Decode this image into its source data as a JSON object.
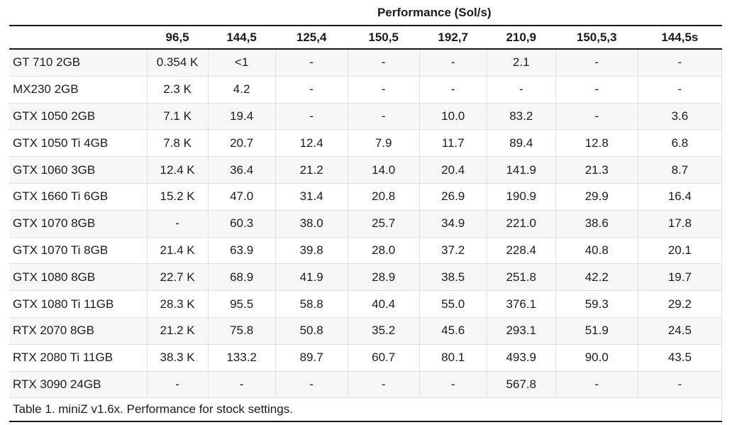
{
  "chart_data": {
    "type": "table",
    "title": "Performance (Sol/s)",
    "caption": "Table 1. miniZ v1.6x. Performance for stock settings.",
    "columns": [
      "96,5",
      "144,5",
      "125,4",
      "150,5",
      "192,7",
      "210,9",
      "150,5,3",
      "144,5s"
    ],
    "rows": [
      {
        "gpu": "GT 710 2GB",
        "values": [
          "0.354 K",
          "<1",
          "-",
          "-",
          "-",
          "2.1",
          "-",
          "-"
        ]
      },
      {
        "gpu": "MX230 2GB",
        "values": [
          "2.3 K",
          "4.2",
          "-",
          "-",
          "-",
          "-",
          "-",
          "-"
        ]
      },
      {
        "gpu": "GTX 1050 2GB",
        "values": [
          "7.1 K",
          "19.4",
          "-",
          "-",
          "10.0",
          "83.2",
          "-",
          "3.6"
        ]
      },
      {
        "gpu": "GTX 1050 Ti 4GB",
        "values": [
          "7.8 K",
          "20.7",
          "12.4",
          "7.9",
          "11.7",
          "89.4",
          "12.8",
          "6.8"
        ]
      },
      {
        "gpu": "GTX 1060 3GB",
        "values": [
          "12.4 K",
          "36.4",
          "21.2",
          "14.0",
          "20.4",
          "141.9",
          "21.3",
          "8.7"
        ]
      },
      {
        "gpu": "GTX 1660 Ti 6GB",
        "values": [
          "15.2 K",
          "47.0",
          "31.4",
          "20.8",
          "26.9",
          "190.9",
          "29.9",
          "16.4"
        ]
      },
      {
        "gpu": "GTX 1070 8GB",
        "values": [
          "-",
          "60.3",
          "38.0",
          "25.7",
          "34.9",
          "221.0",
          "38.6",
          "17.8"
        ]
      },
      {
        "gpu": "GTX 1070 Ti 8GB",
        "values": [
          "21.4 K",
          "63.9",
          "39.8",
          "28.0",
          "37.2",
          "228.4",
          "40.8",
          "20.1"
        ]
      },
      {
        "gpu": "GTX 1080 8GB",
        "values": [
          "22.7 K",
          "68.9",
          "41.9",
          "28.9",
          "38.5",
          "251.8",
          "42.2",
          "19.7"
        ]
      },
      {
        "gpu": "GTX 1080 Ti 11GB",
        "values": [
          "28.3 K",
          "95.5",
          "58.8",
          "40.4",
          "55.0",
          "376.1",
          "59.3",
          "29.2"
        ]
      },
      {
        "gpu": "RTX 2070 8GB",
        "values": [
          "21.2 K",
          "75.8",
          "50.8",
          "35.2",
          "45.6",
          "293.1",
          "51.9",
          "24.5"
        ]
      },
      {
        "gpu": "RTX 2080 Ti 11GB",
        "values": [
          "38.3 K",
          "133.2",
          "89.7",
          "60.7",
          "80.1",
          "493.9",
          "90.0",
          "43.5"
        ]
      },
      {
        "gpu": "RTX 3090 24GB",
        "values": [
          "-",
          "-",
          "-",
          "-",
          "-",
          "567.8",
          "-",
          "-"
        ]
      }
    ],
    "colors": {
      "stripe_row": "#f7f7f7",
      "cell_border": "#e0e0e0",
      "rule": "#161616",
      "text": "#1b1b1b"
    }
  }
}
